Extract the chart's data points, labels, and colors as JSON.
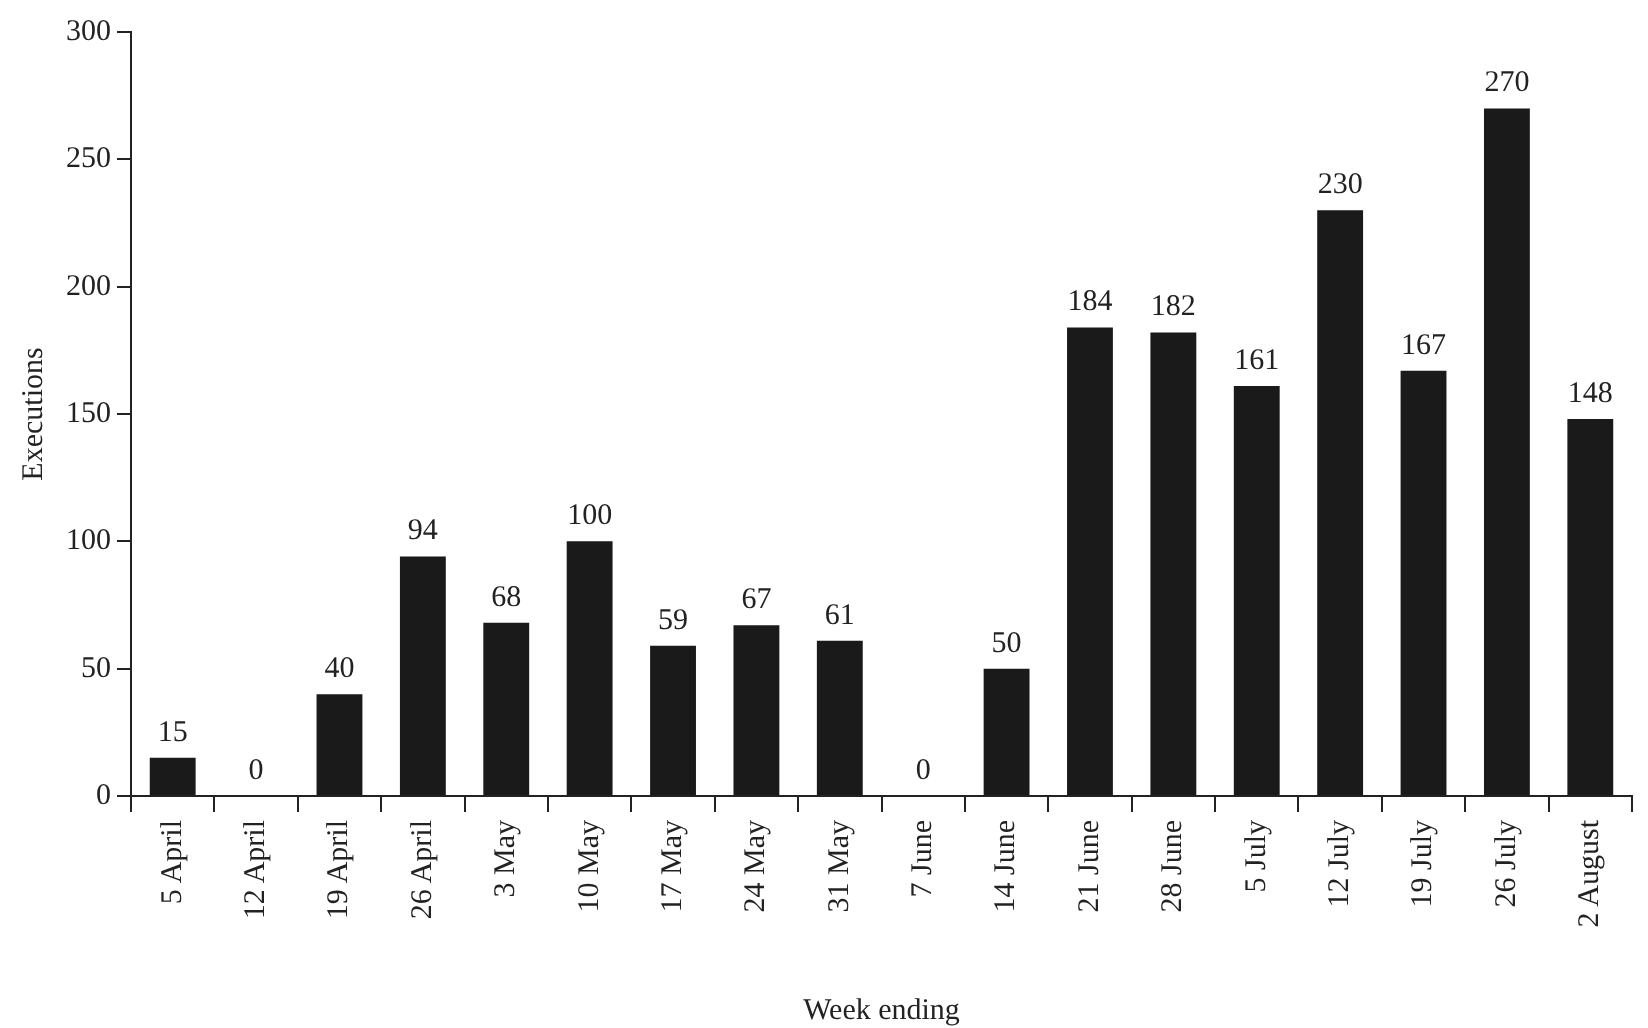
{
  "chart_data": {
    "type": "bar",
    "xlabel": "Week ending",
    "ylabel": "Executions",
    "categories": [
      "5 April",
      "12 April",
      "19 April",
      "26 April",
      "3 May",
      "10 May",
      "17 May",
      "24 May",
      "31 May",
      "7 June",
      "14 June",
      "21 June",
      "28 June",
      "5 July",
      "12 July",
      "19 July",
      "26 July",
      "2 August"
    ],
    "values": [
      15,
      0,
      40,
      94,
      68,
      100,
      59,
      67,
      61,
      0,
      50,
      184,
      182,
      161,
      230,
      167,
      270,
      148
    ],
    "color": "#1a1a1a",
    "ylim": [
      0,
      300
    ],
    "yticks": [
      0,
      50,
      100,
      150,
      200,
      250,
      300
    ],
    "grid": false,
    "legend": false,
    "data_labels": true
  }
}
